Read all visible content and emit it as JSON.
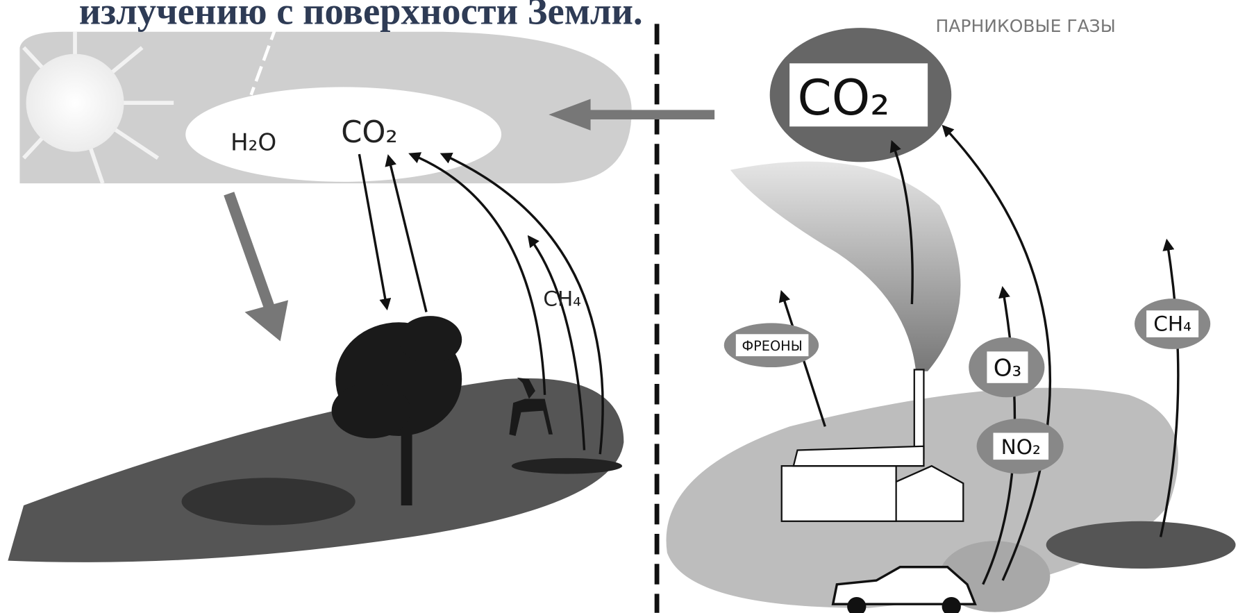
{
  "title": "излучению с поверхности Земли.",
  "corner_label": "ПАРНИКОВЫЕ ГАЗЫ",
  "left": {
    "h2o": "H₂O",
    "co2": "CO₂",
    "ch4": "CH₄"
  },
  "right": {
    "co2": "CO₂",
    "freons": "ФРЕОНЫ",
    "o3": "O₃",
    "no2": "NO₂",
    "ch4": "CH₄"
  }
}
